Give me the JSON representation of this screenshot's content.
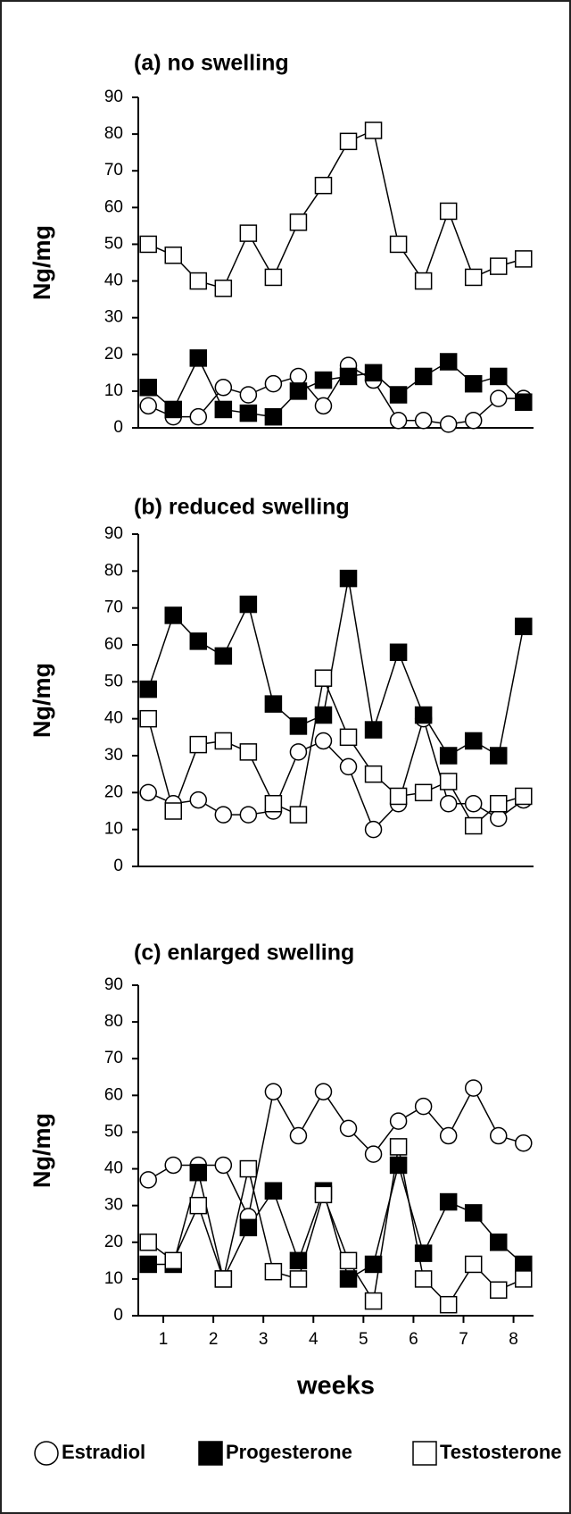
{
  "chart_data": [
    {
      "type": "line",
      "title": "(a) no swelling",
      "ylabel": "Ng/mg",
      "x": [
        0.7,
        1.2,
        1.7,
        2.2,
        2.7,
        3.2,
        3.7,
        4.2,
        4.7,
        5.2,
        5.7,
        6.2,
        6.7,
        7.2,
        7.7,
        8.2
      ],
      "xlim": [
        0.5,
        8.4
      ],
      "ylim": [
        0,
        90
      ],
      "yticks": [
        0,
        10,
        20,
        30,
        40,
        50,
        60,
        70,
        80,
        90
      ],
      "series": [
        {
          "marker": "circle",
          "color": "#ffffff",
          "values": [
            6,
            3,
            3,
            11,
            9,
            12,
            14,
            6,
            17,
            13,
            2,
            2,
            1,
            2,
            8,
            8
          ]
        },
        {
          "marker": "square",
          "color": "#000000",
          "values": [
            11,
            5,
            19,
            5,
            4,
            3,
            10,
            13,
            14,
            15,
            9,
            14,
            18,
            12,
            14,
            7
          ]
        },
        {
          "marker": "square",
          "color": "#ffffff",
          "values": [
            50,
            47,
            40,
            38,
            53,
            41,
            56,
            66,
            78,
            81,
            50,
            40,
            59,
            41,
            44,
            46
          ]
        }
      ]
    },
    {
      "type": "line",
      "title": "(b) reduced swelling",
      "ylabel": "Ng/mg",
      "x": [
        0.7,
        1.2,
        1.7,
        2.2,
        2.7,
        3.2,
        3.7,
        4.2,
        4.7,
        5.2,
        5.7,
        6.2,
        6.7,
        7.2,
        7.7,
        8.2
      ],
      "xlim": [
        0.5,
        8.4
      ],
      "ylim": [
        0,
        90
      ],
      "yticks": [
        0,
        10,
        20,
        30,
        40,
        50,
        60,
        70,
        80,
        90
      ],
      "series": [
        {
          "marker": "circle",
          "color": "#ffffff",
          "values": [
            20,
            17,
            18,
            14,
            14,
            15,
            31,
            34,
            27,
            10,
            17,
            40,
            17,
            17,
            13,
            18
          ]
        },
        {
          "marker": "square",
          "color": "#000000",
          "values": [
            48,
            68,
            61,
            57,
            71,
            44,
            38,
            41,
            78,
            37,
            58,
            41,
            30,
            34,
            30,
            65
          ]
        },
        {
          "marker": "square",
          "color": "#ffffff",
          "values": [
            40,
            15,
            33,
            34,
            31,
            17,
            14,
            51,
            35,
            25,
            19,
            20,
            23,
            11,
            17,
            19
          ]
        }
      ]
    },
    {
      "type": "line",
      "title": "(c) enlarged swelling",
      "ylabel": "Ng/mg",
      "xlabel": "weeks",
      "x": [
        0.7,
        1.2,
        1.7,
        2.2,
        2.7,
        3.2,
        3.7,
        4.2,
        4.7,
        5.2,
        5.7,
        6.2,
        6.7,
        7.2,
        7.7,
        8.2
      ],
      "xlim": [
        0.5,
        8.4
      ],
      "xticks": [
        1,
        2,
        3,
        4,
        5,
        6,
        7,
        8
      ],
      "ylim": [
        0,
        90
      ],
      "yticks": [
        0,
        10,
        20,
        30,
        40,
        50,
        60,
        70,
        80,
        90
      ],
      "series": [
        {
          "name": "Estradiol",
          "marker": "circle",
          "color": "#ffffff",
          "values": [
            37,
            41,
            41,
            41,
            27,
            61,
            49,
            61,
            51,
            44,
            53,
            57,
            49,
            62,
            49,
            47
          ]
        },
        {
          "name": "Progesterone",
          "marker": "square",
          "color": "#000000",
          "values": [
            14,
            14,
            39,
            10,
            24,
            34,
            15,
            34,
            10,
            14,
            41,
            17,
            31,
            28,
            20,
            14
          ]
        },
        {
          "name": "Testosterone",
          "marker": "square",
          "color": "#ffffff",
          "values": [
            20,
            15,
            30,
            10,
            40,
            12,
            10,
            33,
            15,
            4,
            46,
            10,
            3,
            14,
            7,
            10
          ]
        }
      ]
    }
  ]
}
